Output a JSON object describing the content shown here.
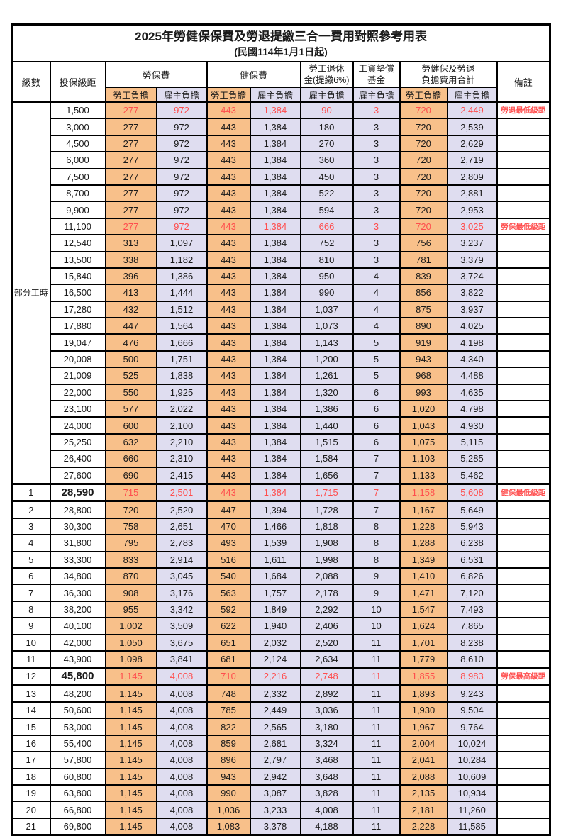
{
  "title": "2025年勞健保保費及勞退提繳三合一費用對照參考用表",
  "subtitle": "(民國114年1月1日起)",
  "colors": {
    "self_burden_bg": "#F8C08A",
    "employer_burden_bg": "#DFDDF0",
    "highlight_text": "#FF4D4D",
    "remark_text": "#FF5050",
    "border": "#000000"
  },
  "header": {
    "level": "級數",
    "bracket": "投保級距",
    "labor_insurance": "勞保費",
    "health_insurance": "健保費",
    "pension": "勞工退休\n金(提繳6%)",
    "wage_fund": "工資墊償\n基金",
    "total": "勞健保及勞退\n負擔費用合計",
    "remark": "備註",
    "self_burden": "勞工負擔",
    "employer_burden": "雇主負擔"
  },
  "group_label": "部分工時",
  "group_span": 23,
  "rows": [
    {
      "bracket": "1,500",
      "values": [
        "277",
        "972",
        "443",
        "1,384",
        "90",
        "3",
        "720",
        "2,449"
      ],
      "remark": "勞退最低級距",
      "red": true
    },
    {
      "bracket": "3,000",
      "values": [
        "277",
        "972",
        "443",
        "1,384",
        "180",
        "3",
        "720",
        "2,539"
      ]
    },
    {
      "bracket": "4,500",
      "values": [
        "277",
        "972",
        "443",
        "1,384",
        "270",
        "3",
        "720",
        "2,629"
      ]
    },
    {
      "bracket": "6,000",
      "values": [
        "277",
        "972",
        "443",
        "1,384",
        "360",
        "3",
        "720",
        "2,719"
      ]
    },
    {
      "bracket": "7,500",
      "values": [
        "277",
        "972",
        "443",
        "1,384",
        "450",
        "3",
        "720",
        "2,809"
      ]
    },
    {
      "bracket": "8,700",
      "values": [
        "277",
        "972",
        "443",
        "1,384",
        "522",
        "3",
        "720",
        "2,881"
      ]
    },
    {
      "bracket": "9,900",
      "values": [
        "277",
        "972",
        "443",
        "1,384",
        "594",
        "3",
        "720",
        "2,953"
      ]
    },
    {
      "bracket": "11,100",
      "values": [
        "277",
        "972",
        "443",
        "1,384",
        "666",
        "3",
        "720",
        "3,025"
      ],
      "remark": "勞保最低級距",
      "red": true
    },
    {
      "bracket": "12,540",
      "values": [
        "313",
        "1,097",
        "443",
        "1,384",
        "752",
        "3",
        "756",
        "3,237"
      ]
    },
    {
      "bracket": "13,500",
      "values": [
        "338",
        "1,182",
        "443",
        "1,384",
        "810",
        "3",
        "781",
        "3,379"
      ]
    },
    {
      "bracket": "15,840",
      "values": [
        "396",
        "1,386",
        "443",
        "1,384",
        "950",
        "4",
        "839",
        "3,724"
      ]
    },
    {
      "bracket": "16,500",
      "values": [
        "413",
        "1,444",
        "443",
        "1,384",
        "990",
        "4",
        "856",
        "3,822"
      ]
    },
    {
      "bracket": "17,280",
      "values": [
        "432",
        "1,512",
        "443",
        "1,384",
        "1,037",
        "4",
        "875",
        "3,937"
      ]
    },
    {
      "bracket": "17,880",
      "values": [
        "447",
        "1,564",
        "443",
        "1,384",
        "1,073",
        "4",
        "890",
        "4,025"
      ]
    },
    {
      "bracket": "19,047",
      "values": [
        "476",
        "1,666",
        "443",
        "1,384",
        "1,143",
        "5",
        "919",
        "4,198"
      ]
    },
    {
      "bracket": "20,008",
      "values": [
        "500",
        "1,751",
        "443",
        "1,384",
        "1,200",
        "5",
        "943",
        "4,340"
      ]
    },
    {
      "bracket": "21,009",
      "values": [
        "525",
        "1,838",
        "443",
        "1,384",
        "1,261",
        "5",
        "968",
        "4,488"
      ]
    },
    {
      "bracket": "22,000",
      "values": [
        "550",
        "1,925",
        "443",
        "1,384",
        "1,320",
        "6",
        "993",
        "4,635"
      ]
    },
    {
      "bracket": "23,100",
      "values": [
        "577",
        "2,022",
        "443",
        "1,384",
        "1,386",
        "6",
        "1,020",
        "4,798"
      ]
    },
    {
      "bracket": "24,000",
      "values": [
        "600",
        "2,100",
        "443",
        "1,384",
        "1,440",
        "6",
        "1,043",
        "4,930"
      ]
    },
    {
      "bracket": "25,250",
      "values": [
        "632",
        "2,210",
        "443",
        "1,384",
        "1,515",
        "6",
        "1,075",
        "5,115"
      ]
    },
    {
      "bracket": "26,400",
      "values": [
        "660",
        "2,310",
        "443",
        "1,384",
        "1,584",
        "7",
        "1,103",
        "5,285"
      ]
    },
    {
      "bracket": "27,600",
      "values": [
        "690",
        "2,415",
        "443",
        "1,384",
        "1,656",
        "7",
        "1,133",
        "5,462"
      ]
    },
    {
      "level": "1",
      "bracket": "28,590",
      "values": [
        "715",
        "2,501",
        "443",
        "1,384",
        "1,715",
        "7",
        "1,158",
        "5,608"
      ],
      "remark": "健保最低級距",
      "red": true,
      "bold": true,
      "thick": true
    },
    {
      "level": "2",
      "bracket": "28,800",
      "values": [
        "720",
        "2,520",
        "447",
        "1,394",
        "1,728",
        "7",
        "1,167",
        "5,649"
      ]
    },
    {
      "level": "3",
      "bracket": "30,300",
      "values": [
        "758",
        "2,651",
        "470",
        "1,466",
        "1,818",
        "8",
        "1,228",
        "5,943"
      ]
    },
    {
      "level": "4",
      "bracket": "31,800",
      "values": [
        "795",
        "2,783",
        "493",
        "1,539",
        "1,908",
        "8",
        "1,288",
        "6,238"
      ]
    },
    {
      "level": "5",
      "bracket": "33,300",
      "values": [
        "833",
        "2,914",
        "516",
        "1,611",
        "1,998",
        "8",
        "1,349",
        "6,531"
      ]
    },
    {
      "level": "6",
      "bracket": "34,800",
      "values": [
        "870",
        "3,045",
        "540",
        "1,684",
        "2,088",
        "9",
        "1,410",
        "6,826"
      ]
    },
    {
      "level": "7",
      "bracket": "36,300",
      "values": [
        "908",
        "3,176",
        "563",
        "1,757",
        "2,178",
        "9",
        "1,471",
        "7,120"
      ]
    },
    {
      "level": "8",
      "bracket": "38,200",
      "values": [
        "955",
        "3,342",
        "592",
        "1,849",
        "2,292",
        "10",
        "1,547",
        "7,493"
      ]
    },
    {
      "level": "9",
      "bracket": "40,100",
      "values": [
        "1,002",
        "3,509",
        "622",
        "1,940",
        "2,406",
        "10",
        "1,624",
        "7,865"
      ]
    },
    {
      "level": "10",
      "bracket": "42,000",
      "values": [
        "1,050",
        "3,675",
        "651",
        "2,032",
        "2,520",
        "11",
        "1,701",
        "8,238"
      ]
    },
    {
      "level": "11",
      "bracket": "43,900",
      "values": [
        "1,098",
        "3,841",
        "681",
        "2,124",
        "2,634",
        "11",
        "1,779",
        "8,610"
      ]
    },
    {
      "level": "12",
      "bracket": "45,800",
      "values": [
        "1,145",
        "4,008",
        "710",
        "2,216",
        "2,748",
        "11",
        "1,855",
        "8,983"
      ],
      "remark": "勞保最高級距",
      "red": true,
      "bold": true,
      "thick": true
    },
    {
      "level": "13",
      "bracket": "48,200",
      "values": [
        "1,145",
        "4,008",
        "748",
        "2,332",
        "2,892",
        "11",
        "1,893",
        "9,243"
      ]
    },
    {
      "level": "14",
      "bracket": "50,600",
      "values": [
        "1,145",
        "4,008",
        "785",
        "2,449",
        "3,036",
        "11",
        "1,930",
        "9,504"
      ]
    },
    {
      "level": "15",
      "bracket": "53,000",
      "values": [
        "1,145",
        "4,008",
        "822",
        "2,565",
        "3,180",
        "11",
        "1,967",
        "9,764"
      ]
    },
    {
      "level": "16",
      "bracket": "55,400",
      "values": [
        "1,145",
        "4,008",
        "859",
        "2,681",
        "3,324",
        "11",
        "2,004",
        "10,024"
      ]
    },
    {
      "level": "17",
      "bracket": "57,800",
      "values": [
        "1,145",
        "4,008",
        "896",
        "2,797",
        "3,468",
        "11",
        "2,041",
        "10,284"
      ]
    },
    {
      "level": "18",
      "bracket": "60,800",
      "values": [
        "1,145",
        "4,008",
        "943",
        "2,942",
        "3,648",
        "11",
        "2,088",
        "10,609"
      ]
    },
    {
      "level": "19",
      "bracket": "63,800",
      "values": [
        "1,145",
        "4,008",
        "990",
        "3,087",
        "3,828",
        "11",
        "2,135",
        "10,934"
      ]
    },
    {
      "level": "20",
      "bracket": "66,800",
      "values": [
        "1,145",
        "4,008",
        "1,036",
        "3,233",
        "4,008",
        "11",
        "2,181",
        "11,260"
      ]
    },
    {
      "level": "21",
      "bracket": "69,800",
      "values": [
        "1,145",
        "4,008",
        "1,083",
        "3,378",
        "4,188",
        "11",
        "2,228",
        "11,585"
      ]
    }
  ]
}
